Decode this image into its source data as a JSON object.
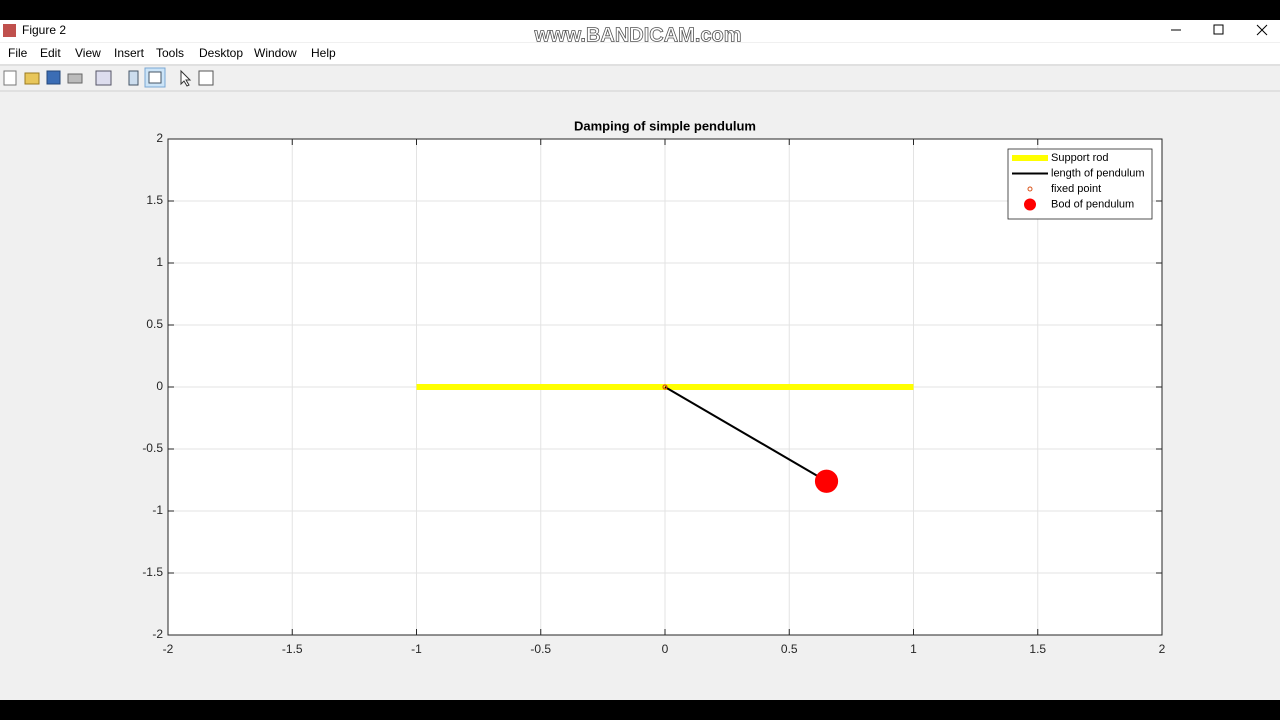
{
  "window": {
    "title": "Figure 2",
    "menu": [
      "File",
      "Edit",
      "View",
      "Insert",
      "Tools",
      "Desktop",
      "Window",
      "Help"
    ]
  },
  "watermark": "www.BANDICAM.com",
  "chart_data": {
    "type": "line",
    "title": "Damping of simple pendulum",
    "xlim": [
      -2,
      2
    ],
    "ylim": [
      -2,
      2
    ],
    "xticks": [
      -2,
      -1.5,
      -1,
      -0.5,
      0,
      0.5,
      1,
      1.5,
      2
    ],
    "yticks": [
      -2,
      -1.5,
      -1,
      -0.5,
      0,
      0.5,
      1,
      1.5,
      2
    ],
    "grid": true,
    "legend": "upper right",
    "series": [
      {
        "name": "Support rod",
        "color": "#ffff00",
        "linewidth": 6,
        "marker": "none",
        "x": [
          -1,
          1
        ],
        "values": [
          0,
          0
        ]
      },
      {
        "name": "length of pendulum",
        "color": "#000000",
        "linewidth": 2,
        "marker": "none",
        "x": [
          0,
          0.65
        ],
        "values": [
          0,
          -0.76
        ]
      },
      {
        "name": "fixed point",
        "color": "#d95319",
        "linewidth": 0,
        "marker": "small-circle",
        "x": [
          0
        ],
        "values": [
          0
        ]
      },
      {
        "name": "Bod of pendulum",
        "color": "#ff0000",
        "linewidth": 0,
        "marker": "large-circle",
        "x": [
          0.65
        ],
        "values": [
          -0.76
        ]
      }
    ]
  }
}
